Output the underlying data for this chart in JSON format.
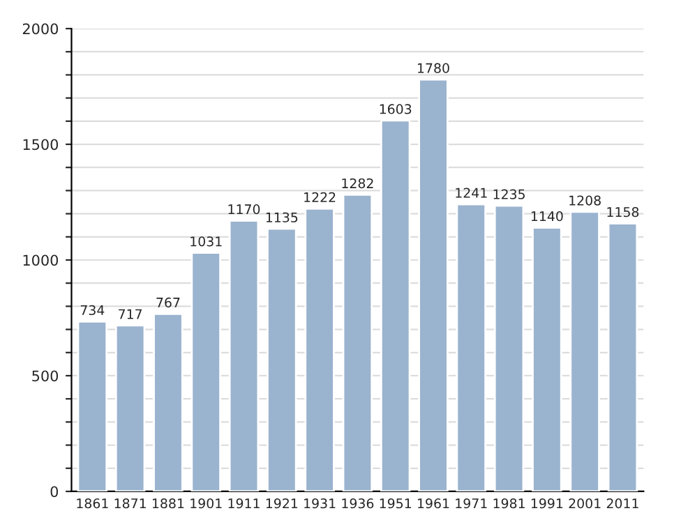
{
  "chart_data": {
    "type": "bar",
    "categories": [
      "1861",
      "1871",
      "1881",
      "1901",
      "1911",
      "1921",
      "1931",
      "1936",
      "1951",
      "1961",
      "1971",
      "1981",
      "1991",
      "2001",
      "2011"
    ],
    "values": [
      734,
      717,
      767,
      1031,
      1170,
      1135,
      1222,
      1282,
      1603,
      1780,
      1241,
      1235,
      1140,
      1208,
      1158
    ],
    "color": "#9ab3cf",
    "ylim": [
      0,
      2000
    ],
    "yticks": [
      0,
      {
        "value": 100,
        "label": null
      },
      {
        "value": 200,
        "label": null
      },
      {
        "value": 300,
        "label": null
      },
      {
        "value": 400,
        "label": null
      },
      500,
      {
        "value": 600,
        "label": null
      },
      {
        "value": 700,
        "label": null
      },
      {
        "value": 800,
        "label": null
      },
      {
        "value": 900,
        "label": null
      },
      1000,
      {
        "value": 1100,
        "label": null
      },
      {
        "value": 1200,
        "label": null
      },
      {
        "value": 1300,
        "label": null
      },
      {
        "value": 1400,
        "label": null
      },
      1500,
      {
        "value": 1600,
        "label": null
      },
      {
        "value": 1700,
        "label": null
      },
      {
        "value": 1800,
        "label": null
      },
      {
        "value": 1900,
        "label": null
      },
      2000
    ],
    "grid": "y",
    "data_labels": true
  }
}
